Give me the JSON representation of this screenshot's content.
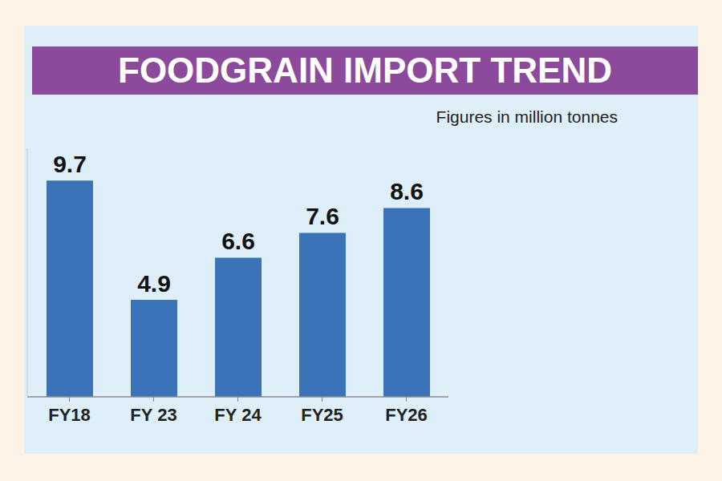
{
  "chart_data": {
    "type": "bar",
    "title": "FOODGRAIN IMPORT TREND",
    "subtitle": "Figures in million tonnes",
    "categories": [
      "FY18",
      "FY 23",
      "FY 24",
      "FY25",
      "FY26"
    ],
    "values": [
      9.7,
      4.9,
      6.6,
      7.6,
      8.6
    ],
    "color": "#3b73b9",
    "ylim": [
      1,
      11
    ],
    "data_labels": true,
    "tick_labels": "x",
    "grid": false
  }
}
